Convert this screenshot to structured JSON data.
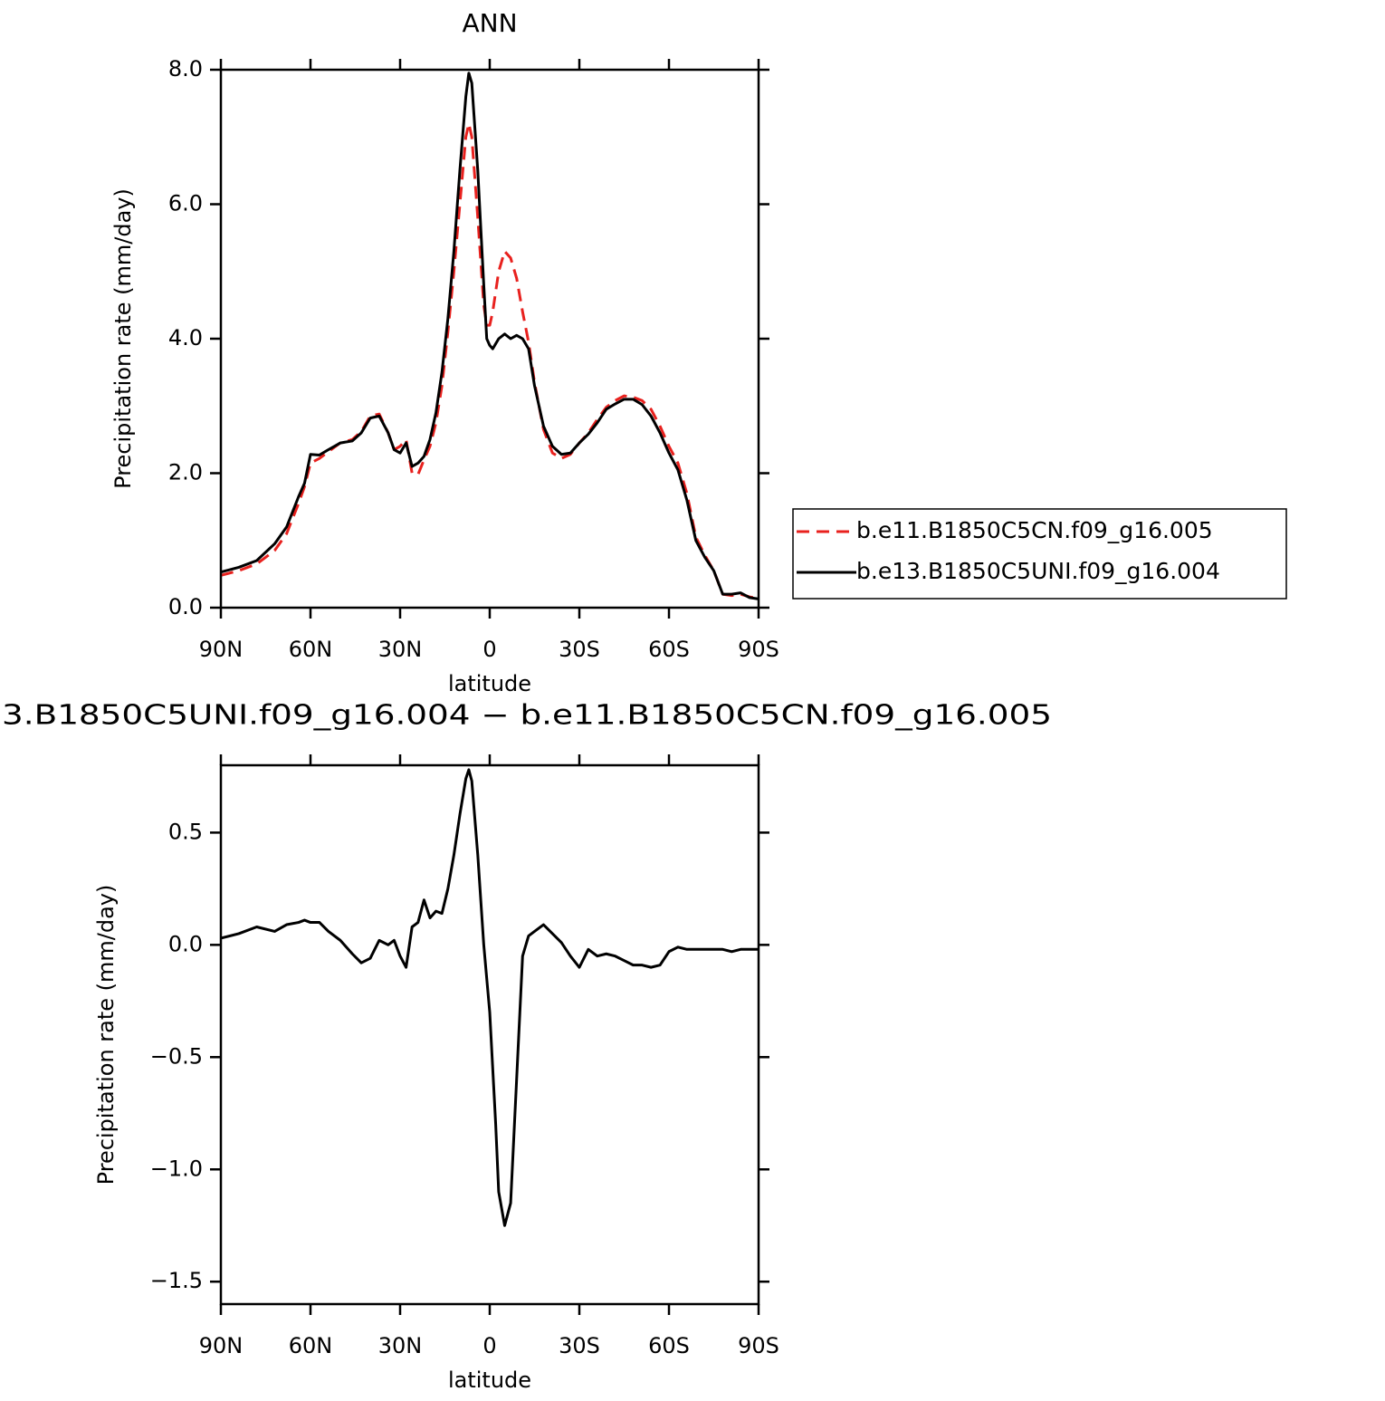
{
  "chart_data": [
    {
      "type": "line",
      "title": "ANN",
      "xlabel": "latitude",
      "ylabel": "Precipitation rate (mm/day)",
      "x": [
        90,
        84,
        78,
        72,
        68,
        64,
        62,
        60,
        57,
        54,
        50,
        46,
        43,
        40,
        37,
        34,
        32,
        30,
        28,
        26,
        24,
        22,
        20,
        18,
        16,
        14,
        12,
        10,
        8,
        7,
        6,
        4,
        2,
        1,
        0,
        -1,
        -3,
        -5,
        -7,
        -9,
        -11,
        -13,
        -15,
        -18,
        -21,
        -24,
        -27,
        -30,
        -33,
        -36,
        -39,
        -42,
        -45,
        -48,
        -51,
        -54,
        -57,
        -60,
        -63,
        -66,
        -69,
        -72,
        -75,
        -78,
        -81,
        -84,
        -87,
        -90
      ],
      "series": [
        {
          "name": "b.e11.B1850C5CN.f09_g16.005",
          "color": "#e8211e",
          "dashed": true,
          "values": [
            0.48,
            0.55,
            0.65,
            0.85,
            1.1,
            1.55,
            1.8,
            2.15,
            2.22,
            2.32,
            2.45,
            2.5,
            2.62,
            2.85,
            2.88,
            2.6,
            2.35,
            2.4,
            2.5,
            2.0,
            1.98,
            2.2,
            2.4,
            2.75,
            3.3,
            4.1,
            5.0,
            6.0,
            7.0,
            7.2,
            7.0,
            5.8,
            4.5,
            4.2,
            4.2,
            4.4,
            5.0,
            5.3,
            5.2,
            4.9,
            4.4,
            3.95,
            3.35,
            2.65,
            2.3,
            2.22,
            2.28,
            2.45,
            2.6,
            2.8,
            2.98,
            3.08,
            3.15,
            3.13,
            3.08,
            2.95,
            2.7,
            2.4,
            2.15,
            1.7,
            1.05,
            0.78,
            0.55,
            0.2,
            0.18,
            0.2,
            0.16,
            0.14
          ]
        },
        {
          "name": "b.e13.B1850C5UNI.f09_g16.004",
          "color": "#000000",
          "dashed": false,
          "values": [
            0.53,
            0.6,
            0.7,
            0.95,
            1.2,
            1.65,
            1.85,
            2.28,
            2.27,
            2.35,
            2.45,
            2.48,
            2.6,
            2.82,
            2.85,
            2.6,
            2.35,
            2.3,
            2.45,
            2.1,
            2.15,
            2.25,
            2.5,
            2.9,
            3.5,
            4.3,
            5.3,
            6.5,
            7.6,
            7.95,
            7.8,
            6.5,
            4.8,
            4.0,
            3.9,
            3.85,
            4.0,
            4.07,
            4.0,
            4.05,
            4.0,
            3.85,
            3.3,
            2.7,
            2.4,
            2.28,
            2.3,
            2.45,
            2.58,
            2.75,
            2.95,
            3.03,
            3.1,
            3.1,
            3.02,
            2.85,
            2.6,
            2.3,
            2.05,
            1.6,
            1.0,
            0.75,
            0.55,
            0.2,
            0.2,
            0.22,
            0.15,
            0.13
          ]
        }
      ],
      "xlim": [
        90,
        -90
      ],
      "xticks": [
        {
          "value": 90,
          "label": "90N"
        },
        {
          "value": 60,
          "label": "60N"
        },
        {
          "value": 30,
          "label": "30N"
        },
        0,
        {
          "value": -30,
          "label": "30S"
        },
        {
          "value": -60,
          "label": "60S"
        },
        {
          "value": -90,
          "label": "90S"
        }
      ],
      "ylim": [
        0,
        8
      ],
      "yticks": [
        {
          "value": 0,
          "label": "0.0"
        },
        {
          "value": 2,
          "label": "2.0"
        },
        {
          "value": 4,
          "label": "4.0"
        },
        {
          "value": 6,
          "label": "6.0"
        },
        {
          "value": 8,
          "label": "8.0"
        }
      ],
      "legend": "right"
    },
    {
      "type": "line",
      "title": "3.B1850C5UNI.f09_g16.004 − b.e11.B1850C5CN.f09_g16.005",
      "xlabel": "latitude",
      "ylabel": "Precipitation rate (mm/day)",
      "x": [
        90,
        84,
        78,
        72,
        68,
        64,
        62,
        60,
        57,
        54,
        50,
        46,
        43,
        40,
        37,
        34,
        32,
        30,
        28,
        26,
        24,
        22,
        20,
        18,
        16,
        14,
        12,
        10,
        8,
        7,
        6,
        4,
        2,
        0,
        -2,
        -3,
        -5,
        -7,
        -9,
        -11,
        -13,
        -15,
        -18,
        -21,
        -24,
        -27,
        -30,
        -33,
        -36,
        -39,
        -42,
        -45,
        -48,
        -51,
        -54,
        -57,
        -60,
        -63,
        -66,
        -69,
        -72,
        -75,
        -78,
        -81,
        -84,
        -87,
        -90
      ],
      "series": [
        {
          "color": "#000000",
          "dashed": false,
          "values": [
            0.03,
            0.05,
            0.08,
            0.06,
            0.09,
            0.1,
            0.11,
            0.1,
            0.1,
            0.06,
            0.02,
            -0.04,
            -0.08,
            -0.06,
            0.02,
            0.0,
            0.02,
            -0.05,
            -0.1,
            0.08,
            0.1,
            0.2,
            0.12,
            0.15,
            0.14,
            0.25,
            0.4,
            0.58,
            0.74,
            0.78,
            0.73,
            0.4,
            0.0,
            -0.3,
            -0.8,
            -1.1,
            -1.25,
            -1.15,
            -0.6,
            -0.05,
            0.04,
            0.06,
            0.09,
            0.05,
            0.01,
            -0.05,
            -0.1,
            -0.02,
            -0.05,
            -0.04,
            -0.05,
            -0.07,
            -0.09,
            -0.09,
            -0.1,
            -0.09,
            -0.03,
            -0.01,
            -0.02,
            -0.02,
            -0.02,
            -0.02,
            -0.02,
            -0.03,
            -0.02,
            -0.02,
            -0.02
          ]
        }
      ],
      "xlim": [
        90,
        -90
      ],
      "xticks": [
        {
          "value": 90,
          "label": "90N"
        },
        {
          "value": 60,
          "label": "60N"
        },
        {
          "value": 30,
          "label": "30N"
        },
        0,
        {
          "value": -30,
          "label": "30S"
        },
        {
          "value": -60,
          "label": "60S"
        },
        {
          "value": -90,
          "label": "90S"
        }
      ],
      "ylim": [
        -1.6,
        0.8
      ],
      "yticks": [
        {
          "value": -1.5,
          "label": "−1.5"
        },
        {
          "value": -1.0,
          "label": "−1.0"
        },
        {
          "value": -0.5,
          "label": "−0.5"
        },
        {
          "value": 0,
          "label": "0.0"
        },
        0.5
      ]
    }
  ]
}
